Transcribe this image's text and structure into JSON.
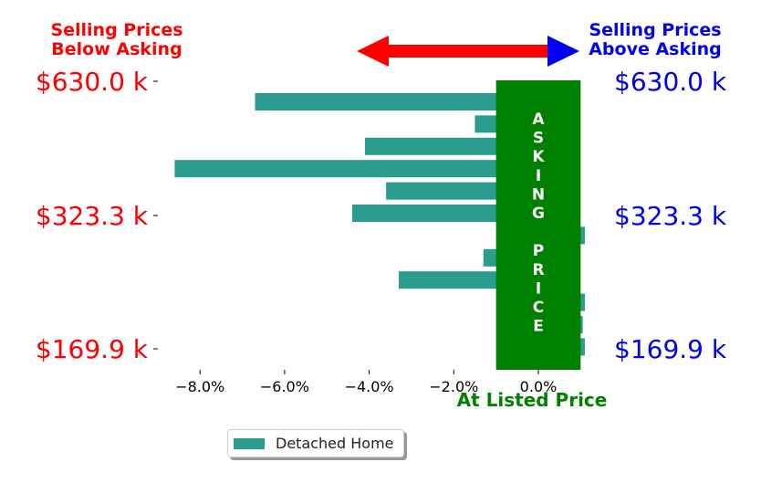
{
  "chart_data": {
    "type": "bar",
    "orientation": "horizontal",
    "x": [
      -6.7,
      -1.5,
      -4.1,
      -8.6,
      -3.6,
      -4.4,
      1.1,
      -1.3,
      -3.3,
      1.1,
      1.05,
      1.1
    ],
    "xlim": [
      -9.3,
      1.5
    ],
    "xticks": [
      -8,
      -6,
      -4,
      -2,
      0
    ],
    "xtick_labels": [
      "−8.0%",
      "−6.0%",
      "−4.0%",
      "−2.0%",
      "0.0%"
    ],
    "ytick_labels": [
      "$630.0 k",
      "$323.3 k",
      "$169.9 k"
    ],
    "left_title": [
      "Selling Prices",
      "Below Asking"
    ],
    "right_title": [
      "Selling Prices",
      "Above Asking"
    ],
    "xlabel": "At Listed Price",
    "asking_band": {
      "x_from": -1.0,
      "x_to": 1.0,
      "letters": [
        "A",
        "S",
        "K",
        "I",
        "N",
        "G",
        "",
        "P",
        "R",
        "I",
        "C",
        "E"
      ]
    },
    "series": [
      {
        "name": "Detached Home",
        "color": "#2a9d8f"
      }
    ],
    "legend": "lower-center",
    "grid": false
  },
  "colors": {
    "bar": "#2a9d8f",
    "band": "#008000",
    "below": "#ff0000",
    "above": "#0000ee",
    "axis": "#000000"
  },
  "legend": {
    "label": "Detached Home"
  }
}
